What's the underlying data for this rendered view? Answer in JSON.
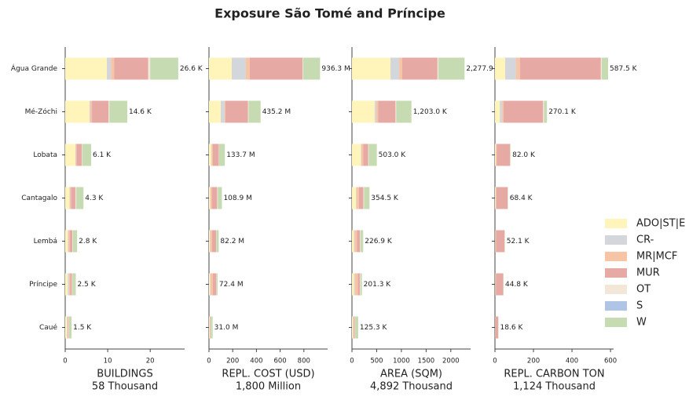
{
  "title": "Exposure São Tomé and Príncipe",
  "chart_data": [
    {
      "type": "bar",
      "orientation": "horizontal",
      "categories": [
        "Água Grande",
        "Mé-Zóchi",
        "Lobata",
        "Cantagalo",
        "Lembá",
        "Príncipe",
        "Caué"
      ],
      "xlabel": "BUILDINGS",
      "xlabel_sub": "58 Thousand",
      "xlim": [
        0,
        28.1
      ],
      "xticks": [
        0,
        10,
        20
      ],
      "series": [
        {
          "name": "ADO|ST|E",
          "color": "#fff5bb",
          "values": [
            9.8,
            5.7,
            2.4,
            1.0,
            0.6,
            0.6,
            0.4
          ]
        },
        {
          "name": "CR-",
          "color": "#d3d6da",
          "values": [
            1.0,
            0.2,
            0.1,
            0.1,
            0.1,
            0.3,
            0.1
          ]
        },
        {
          "name": "MR|MCF",
          "color": "#f7c4a5",
          "values": [
            0.7,
            0.4,
            0.2,
            0.3,
            0.4,
            0.3,
            0.1
          ]
        },
        {
          "name": "MUR",
          "color": "#e6a9a3",
          "values": [
            8.0,
            3.9,
            1.2,
            1.0,
            0.6,
            0.4,
            0.2
          ]
        },
        {
          "name": "OT",
          "color": "#f2e7d9",
          "values": [
            0.5,
            0.2,
            0.1,
            0.2,
            0.1,
            0.1,
            0.1
          ]
        },
        {
          "name": "S",
          "color": "#b0c4e6",
          "values": [
            0,
            0,
            0,
            0,
            0,
            0,
            0
          ]
        },
        {
          "name": "W",
          "color": "#c6dbb2",
          "values": [
            6.6,
            4.2,
            2.1,
            1.7,
            1.0,
            0.8,
            0.6
          ]
        }
      ],
      "totals": [
        26.6,
        14.6,
        6.1,
        4.3,
        2.8,
        2.5,
        1.5
      ],
      "total_labels": [
        "26.6 K",
        "14.6 K",
        "6.1 K",
        "4.3 K",
        "2.8 K",
        "2.5 K",
        "1.5 K"
      ]
    },
    {
      "type": "bar",
      "orientation": "horizontal",
      "xlabel": "REPL. COST (USD)",
      "xlabel_sub": "1,800 Million",
      "xlim": [
        0,
        1000
      ],
      "xticks": [
        0,
        200,
        400,
        600,
        800
      ],
      "series": [
        {
          "values": [
            192,
            99,
            20,
            10,
            8,
            8,
            5
          ]
        },
        {
          "values": [
            119,
            33,
            3,
            2,
            2,
            4,
            1
          ]
        },
        {
          "values": [
            33,
            7,
            10,
            12,
            15,
            20,
            3
          ]
        },
        {
          "values": [
            444,
            190,
            50,
            45,
            35,
            30,
            5
          ]
        },
        {
          "values": [
            5,
            5,
            3,
            5,
            2,
            2,
            2
          ]
        },
        {
          "values": [
            0,
            0,
            0,
            0,
            0,
            0,
            0
          ]
        },
        {
          "values": [
            143.3,
            101.2,
            47.7,
            34.9,
            20.2,
            8.4,
            15
          ]
        }
      ],
      "totals": [
        936.3,
        435.2,
        133.7,
        108.9,
        82.2,
        72.4,
        31.0
      ],
      "total_labels": [
        "936.3 M",
        "435.2 M",
        "133.7 M",
        "108.9 M",
        "82.2 M",
        "72.4 M",
        "31.0 M"
      ]
    },
    {
      "type": "bar",
      "orientation": "horizontal",
      "xlabel": "AREA (SQM)",
      "xlabel_sub": "4,892 Thousand",
      "xlim": [
        0,
        2400
      ],
      "xticks": [
        0,
        500,
        1000,
        1500,
        2000
      ],
      "series": [
        {
          "values": [
            780,
            460,
            180,
            80,
            40,
            40,
            20
          ]
        },
        {
          "values": [
            175,
            30,
            10,
            10,
            10,
            20,
            5
          ]
        },
        {
          "values": [
            60,
            40,
            40,
            50,
            50,
            60,
            10
          ]
        },
        {
          "values": [
            715,
            350,
            100,
            90,
            60,
            40,
            20
          ]
        },
        {
          "values": [
            20,
            15,
            10,
            15,
            10,
            10,
            10
          ]
        },
        {
          "values": [
            0,
            0,
            0,
            0,
            0,
            0,
            0
          ]
        },
        {
          "values": [
            527.9,
            308,
            163,
            109.5,
            56.9,
            31.3,
            60.3
          ]
        }
      ],
      "totals": [
        2277.9,
        1203.0,
        503.0,
        354.5,
        226.9,
        201.3,
        125.3
      ],
      "total_labels": [
        "2,277.9 K",
        "1,203.0 K",
        "503.0 K",
        "354.5 K",
        "226.9 K",
        "201.3 K",
        "125.3 K"
      ]
    },
    {
      "type": "bar",
      "orientation": "horizontal",
      "xlabel": "REPL. CARBON TON",
      "xlabel_sub": "1,124 Thousand",
      "xlim": [
        0,
        616
      ],
      "xticks": [
        0,
        200,
        400,
        600
      ],
      "series": [
        {
          "values": [
            53,
            25,
            4,
            2,
            1,
            1,
            1
          ]
        },
        {
          "values": [
            57,
            12,
            1,
            1,
            1,
            1,
            0.5
          ]
        },
        {
          "values": [
            20,
            8,
            5,
            5,
            4,
            3,
            1
          ]
        },
        {
          "values": [
            420,
            205,
            68,
            58,
            44,
            38,
            15
          ]
        },
        {
          "values": [
            5,
            5,
            2,
            1,
            1,
            1,
            0.5
          ]
        },
        {
          "values": [
            0,
            0,
            0,
            0,
            0,
            0,
            0
          ]
        },
        {
          "values": [
            32.5,
            15.1,
            2,
            1.4,
            1.1,
            0.8,
            0.6
          ]
        }
      ],
      "totals": [
        587.5,
        270.1,
        82.0,
        68.4,
        52.1,
        44.8,
        18.6
      ],
      "total_labels": [
        "587.5 K",
        "270.1 K",
        "82.0 K",
        "68.4 K",
        "52.1 K",
        "44.8 K",
        "18.6 K"
      ]
    }
  ]
}
